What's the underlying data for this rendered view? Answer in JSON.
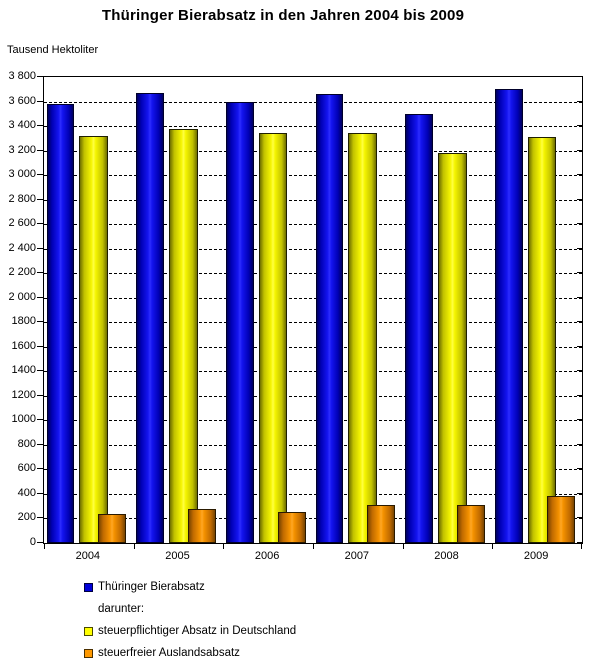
{
  "title": "Thüringer Bierabsatz in den Jahren 2004 bis 2009",
  "unit_label": "Tausend Hektoliter",
  "colors": {
    "blue": "#1414f0",
    "yellow": "#ffff00",
    "orange": "#ff9900",
    "grid": "#000000",
    "background": "#ffffff",
    "text": "#000000"
  },
  "chart_data": {
    "type": "bar",
    "title": "Thüringer Bierabsatz in den Jahren 2004 bis 2009",
    "ylabel": "Tausend Hektoliter",
    "xlabel": "",
    "categories": [
      "2004",
      "2005",
      "2006",
      "2007",
      "2008",
      "2009"
    ],
    "series": [
      {
        "name": "Thüringer Bierabsatz",
        "color_key": "blue",
        "values": [
          3580,
          3670,
          3600,
          3660,
          3500,
          3700
        ]
      },
      {
        "name": "steuerpflichtiger Absatz in Deutschland",
        "color_key": "yellow",
        "values": [
          3320,
          3380,
          3340,
          3340,
          3180,
          3310
        ]
      },
      {
        "name": "steuerfreier Auslandsabsatz",
        "color_key": "orange",
        "values": [
          240,
          280,
          250,
          310,
          310,
          380
        ]
      }
    ],
    "ylim": [
      0,
      3800
    ],
    "ytick_step": 200,
    "ytick_labels_top_to_bottom": [
      "3 800",
      "3 600",
      "3 400",
      "3 200",
      "3 000",
      "2 800",
      "2 600",
      "2 400",
      "2 200",
      "2 000",
      "1800",
      "1600",
      "1400",
      "1200",
      "1000",
      "800",
      "600",
      "400",
      "200",
      "0"
    ],
    "grid": "horizontal-dashed",
    "legend_position": "bottom-left",
    "legend": {
      "items": [
        {
          "swatch": "blue",
          "label": "Thüringer Bierabsatz"
        },
        {
          "swatch": null,
          "label": "darunter:"
        },
        {
          "swatch": "yellow",
          "label": "steuerpflichtiger Absatz in Deutschland"
        },
        {
          "swatch": "orange",
          "label": "steuerfreier Auslandsabsatz"
        }
      ]
    }
  }
}
